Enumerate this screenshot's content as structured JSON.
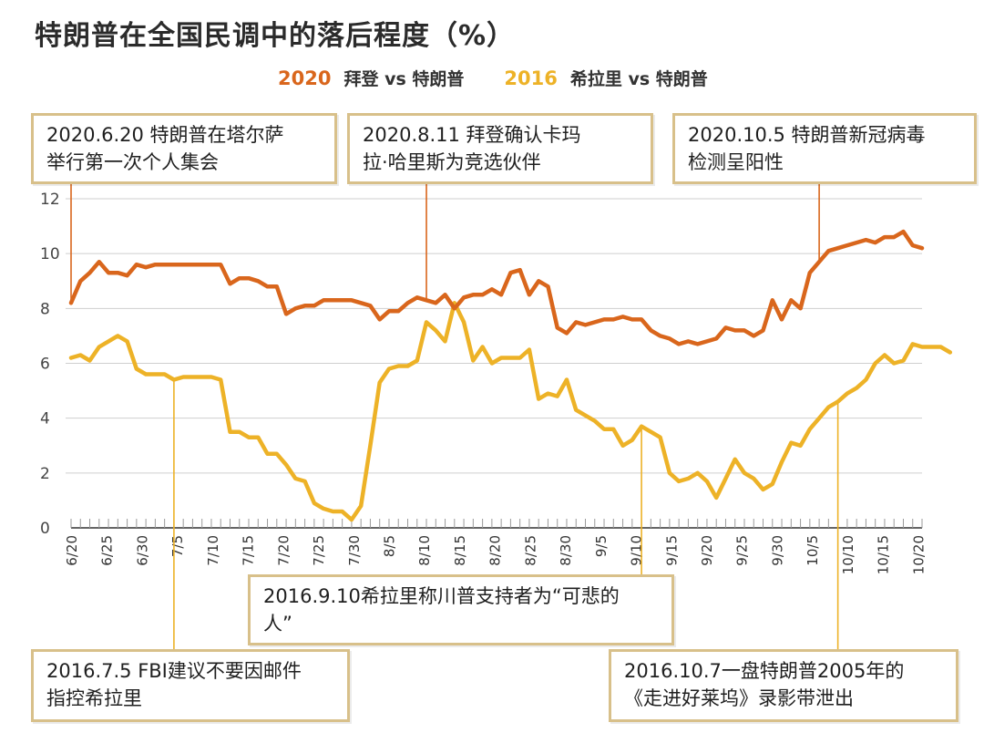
{
  "chart_data": {
    "type": "line",
    "title": "特朗普在全国民调中的落后程度（%）",
    "ylim": [
      0,
      12
    ],
    "y_ticks": [
      0,
      2,
      4,
      6,
      8,
      10,
      12
    ],
    "x_tick_labels": [
      "6/20",
      "6/25",
      "6/30",
      "7/5",
      "7/10",
      "7/15",
      "7/20",
      "7/25",
      "7/30",
      "8/5",
      "8/10",
      "8/15",
      "8/20",
      "8/25",
      "8/30",
      "9/5",
      "9/10",
      "9/15",
      "9/20",
      "9/25",
      "9/30",
      "10/5",
      "10/10",
      "10/15",
      "10/20"
    ],
    "grid": true,
    "legend_position": "top",
    "series": [
      {
        "name": "拜登 vs 特朗普",
        "year_label": "2020",
        "color": "#d9661c",
        "values": [
          8.2,
          9.0,
          9.3,
          9.7,
          9.3,
          9.3,
          9.2,
          9.6,
          9.5,
          9.6,
          9.6,
          9.6,
          9.6,
          9.6,
          9.6,
          9.6,
          9.6,
          8.9,
          9.1,
          9.1,
          9.0,
          8.8,
          8.8,
          7.8,
          8.0,
          8.1,
          8.1,
          8.3,
          8.3,
          8.3,
          8.3,
          8.2,
          8.1,
          7.6,
          7.9,
          7.9,
          8.2,
          8.4,
          8.3,
          8.2,
          8.5,
          8.0,
          8.4,
          8.5,
          8.5,
          8.7,
          8.5,
          9.3,
          9.4,
          8.5,
          9.0,
          8.8,
          7.3,
          7.1,
          7.5,
          7.4,
          7.5,
          7.6,
          7.6,
          7.7,
          7.6,
          7.6,
          7.2,
          7.0,
          6.9,
          6.7,
          6.8,
          6.7,
          6.8,
          6.9,
          7.3,
          7.2,
          7.2,
          7.0,
          7.2,
          8.3,
          7.6,
          8.3,
          8.0,
          9.3,
          9.7,
          10.1,
          10.2,
          10.3,
          10.4,
          10.5,
          10.4,
          10.6,
          10.6,
          10.8,
          10.3,
          10.2
        ]
      },
      {
        "name": "希拉里 vs 特朗普",
        "year_label": "2016",
        "color": "#edb227",
        "values": [
          6.2,
          6.3,
          6.1,
          6.6,
          6.8,
          7.0,
          6.8,
          5.8,
          5.6,
          5.6,
          5.6,
          5.4,
          5.5,
          5.5,
          5.5,
          5.5,
          5.4,
          3.5,
          3.5,
          3.3,
          3.3,
          2.7,
          2.7,
          2.3,
          1.8,
          1.7,
          0.9,
          0.7,
          0.6,
          0.6,
          0.3,
          0.8,
          3.0,
          5.3,
          5.8,
          5.9,
          5.9,
          6.1,
          7.5,
          7.2,
          6.8,
          8.2,
          7.5,
          6.1,
          6.6,
          6.0,
          6.2,
          6.2,
          6.2,
          6.5,
          4.7,
          4.9,
          4.8,
          5.4,
          4.3,
          4.1,
          3.9,
          3.6,
          3.6,
          3.0,
          3.2,
          3.7,
          3.5,
          3.3,
          2.0,
          1.7,
          1.8,
          2.0,
          1.7,
          1.1,
          1.8,
          2.5,
          2.0,
          1.8,
          1.4,
          1.6,
          2.4,
          3.1,
          3.0,
          3.6,
          4.0,
          4.4,
          4.6,
          4.9,
          5.1,
          5.4,
          6.0,
          6.3,
          6.0,
          6.1,
          6.7,
          6.6,
          6.6,
          6.6,
          6.4
        ]
      }
    ]
  },
  "legend": {
    "items": [
      {
        "year": "2020",
        "label": "拜登 vs 特朗普",
        "color": "#d9661c"
      },
      {
        "year": "2016",
        "label": "希拉里 vs 特朗普",
        "color": "#edb227"
      }
    ]
  },
  "annotations": [
    {
      "id": "a1",
      "text_line1": "2020.6.20 特朗普在塔尔萨",
      "text_line2": "举行第一次个人集会",
      "series": 0,
      "index": 0
    },
    {
      "id": "a2",
      "text_line1": "2020.8.11 拜登确认卡玛",
      "text_line2": "拉·哈里斯为竞选伙伴",
      "series": 0,
      "index": 38
    },
    {
      "id": "a3",
      "text_line1": "2020.10.5 特朗普新冠病毒",
      "text_line2": "检测呈阳性",
      "series": 0,
      "index": 80
    },
    {
      "id": "a4",
      "text_line1": "2016.9.10希拉里称川普支持者为“可悲的",
      "text_line2": "人”",
      "series": 1,
      "index": 61
    },
    {
      "id": "a5",
      "text_line1": "2016.7.5 FBI建议不要因邮件",
      "text_line2": "指控希拉里",
      "series": 1,
      "index": 11
    },
    {
      "id": "a6",
      "text_line1": "2016.10.7一盘特朗普2005年的",
      "text_line2": "《走进好莱坞》录影带泄出",
      "series": 1,
      "index": 82
    }
  ]
}
